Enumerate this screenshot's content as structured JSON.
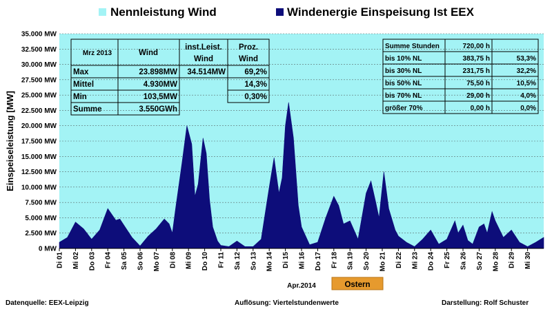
{
  "chart_data": {
    "type": "area",
    "legend": [
      {
        "name": "Nennleistung Wind",
        "color": "#a3f3f5"
      },
      {
        "name": "Windenergie Einspeisung Ist EEX",
        "color": "#0d0d7a"
      }
    ],
    "ylabel": "Einspeiseleistung  [MW]",
    "xlabel": "Apr.2014",
    "ylim": [
      0,
      35000
    ],
    "yticks": [
      {
        "v": 0,
        "label": "0 MW"
      },
      {
        "v": 2500,
        "label": "2.500 MW"
      },
      {
        "v": 5000,
        "label": "5.000 MW"
      },
      {
        "v": 7500,
        "label": "7.500 MW"
      },
      {
        "v": 10000,
        "label": "10.000 MW"
      },
      {
        "v": 12500,
        "label": "12.500 MW"
      },
      {
        "v": 15000,
        "label": "15.000 MW"
      },
      {
        "v": 17500,
        "label": "17.500 MW"
      },
      {
        "v": 20000,
        "label": "20.000 MW"
      },
      {
        "v": 22500,
        "label": "22.500 MW"
      },
      {
        "v": 25000,
        "label": "25.000 MW"
      },
      {
        "v": 27500,
        "label": "27.500 MW"
      },
      {
        "v": 30000,
        "label": "30.000 MW"
      },
      {
        "v": 32500,
        "label": "32.500 MW"
      },
      {
        "v": 35000,
        "label": "35.000 MW"
      }
    ],
    "xticks": [
      "Di 01",
      "Mi 02",
      "Do 03",
      "Fr 04",
      "Sa 05",
      "So 06",
      "Mo 07",
      "Di 08",
      "Mi 09",
      "Do 10",
      "Fr 11",
      "Sa 12",
      "So 13",
      "Mo 14",
      "Di 15",
      "Mi 16",
      "Do 17",
      "Fr 18",
      "Sa 19",
      "So 20",
      "Mo 21",
      "Di 22",
      "Mi 23",
      "Do 24",
      "Fr 25",
      "Sa 26",
      "So 27",
      "Mo 28",
      "Di 29",
      "Mi 30"
    ],
    "series": [
      {
        "name": "Windenergie Einspeisung Ist EEX",
        "x_days": [
          0,
          0.5,
          1,
          1.5,
          2,
          2.5,
          3,
          3.5,
          3.75,
          4,
          4.5,
          5,
          5.5,
          6,
          6.5,
          6.8,
          7,
          7.2,
          7.6,
          7.9,
          8.2,
          8.4,
          8.6,
          8.9,
          9.1,
          9.3,
          9.5,
          9.8,
          10,
          10.5,
          11,
          11.5,
          12,
          12.5,
          13,
          13.3,
          13.6,
          13.8,
          14,
          14.2,
          14.5,
          14.8,
          15,
          15.5,
          16,
          16.5,
          17,
          17.3,
          17.6,
          18,
          18.5,
          19,
          19.3,
          19.6,
          19.8,
          20.1,
          20.4,
          20.8,
          21,
          21.5,
          22,
          22.5,
          23,
          23.5,
          24,
          24.5,
          24.7,
          25,
          25.3,
          25.6,
          26,
          26.3,
          26.5,
          26.8,
          27,
          27.5,
          28,
          28.5,
          29,
          29.5,
          30
        ],
        "values": [
          1000,
          1800,
          4300,
          3200,
          1500,
          3000,
          6500,
          4600,
          4800,
          3800,
          1800,
          400,
          2000,
          3200,
          4800,
          4000,
          2500,
          6500,
          14000,
          20000,
          17000,
          8500,
          10500,
          18000,
          15500,
          8000,
          3500,
          1200,
          500,
          300,
          1200,
          300,
          300,
          1500,
          10000,
          14800,
          9000,
          11500,
          20000,
          23800,
          18000,
          7000,
          3500,
          600,
          1000,
          5000,
          8500,
          7000,
          4000,
          4500,
          1500,
          9000,
          11000,
          7500,
          5000,
          12500,
          6500,
          3000,
          2000,
          1000,
          300,
          1500,
          3000,
          700,
          1500,
          4500,
          2500,
          3800,
          1300,
          700,
          3500,
          4000,
          2500,
          6000,
          4500,
          1800,
          3000,
          1000,
          300,
          1000,
          1800
        ]
      }
    ]
  },
  "ostern": "Ostern",
  "stats_left": {
    "header": [
      "Mrz 2013",
      "Wind",
      "inst.Leist.",
      "Proz."
    ],
    "header2": [
      "",
      "",
      "Wind",
      "Wind"
    ],
    "rows": [
      {
        "label": "Max",
        "wind": "23.898MW",
        "inst": "34.514MW",
        "proz": "69,2%"
      },
      {
        "label": "Mittel",
        "wind": "4.930MW",
        "inst": "",
        "proz": "14,3%"
      },
      {
        "label": "Min",
        "wind": "103,5MW",
        "inst": "",
        "proz": "0,30%"
      },
      {
        "label": "Summe",
        "wind": "3.550GWh",
        "inst": "",
        "proz": ""
      }
    ]
  },
  "stats_right": {
    "rows": [
      {
        "label": "Summe Stunden",
        "hours": "720,00 h",
        "pct": ""
      },
      {
        "label": "bis 10% NL",
        "hours": "383,75 h",
        "pct": "53,3%"
      },
      {
        "label": "bis 30% NL",
        "hours": "231,75 h",
        "pct": "32,2%"
      },
      {
        "label": "bis 50% NL",
        "hours": "75,50 h",
        "pct": "10,5%"
      },
      {
        "label": "bis 70% NL",
        "hours": "29,00 h",
        "pct": "4,0%"
      },
      {
        "label": "größer 70%",
        "hours": "0,00 h",
        "pct": "0,0%"
      }
    ]
  },
  "footer": {
    "left": "Datenquelle:  EEX-Leipzig",
    "center": "Auflösung: Viertelstundenwerte",
    "right": "Darstellung: Rolf Schuster"
  }
}
